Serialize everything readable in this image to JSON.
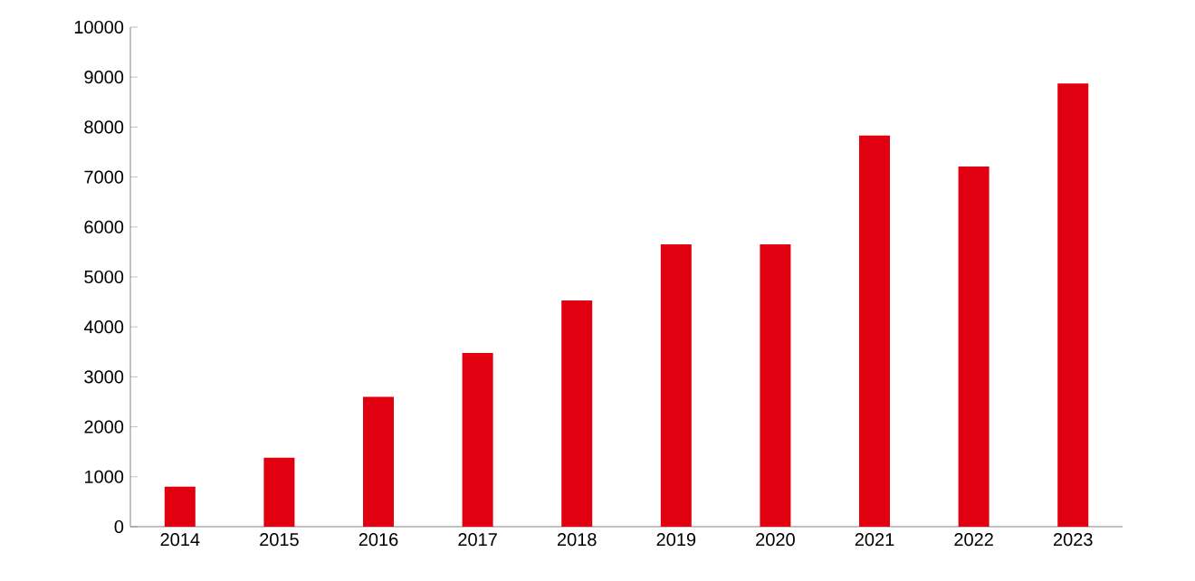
{
  "chart_data": {
    "type": "bar",
    "categories": [
      "2014",
      "2015",
      "2016",
      "2017",
      "2018",
      "2019",
      "2020",
      "2021",
      "2022",
      "2023"
    ],
    "values": [
      800,
      1380,
      2600,
      3480,
      4530,
      5650,
      5650,
      7830,
      7210,
      8870
    ],
    "color": "#e0000f",
    "ylim": [
      0,
      10000
    ],
    "yticks": [
      0,
      1000,
      2000,
      3000,
      4000,
      5000,
      6000,
      7000,
      8000,
      9000,
      10000
    ]
  }
}
